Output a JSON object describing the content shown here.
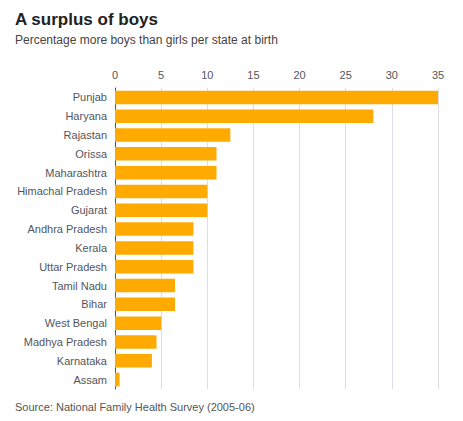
{
  "chart_data": {
    "type": "bar",
    "orientation": "horizontal",
    "title": "A surplus of boys",
    "subtitle": "Percentage more boys than girls per state at birth",
    "annotations": [
      "Source: National Family Health Survey (2005-06)"
    ],
    "categories": [
      "Assam",
      "Karnataka",
      "Madhya Pradesh",
      "West Bengal",
      "Bihar",
      "Tamil Nadu",
      "Uttar Pradesh",
      "Kerala",
      "Andhra Pradesh",
      "Gujarat",
      "Himachal Pradesh",
      "Maharashtra",
      "Orissa",
      "Rajastan",
      "Haryana",
      "Punjab"
    ],
    "values": [
      0.5,
      4.0,
      4.5,
      5.0,
      6.5,
      6.5,
      8.5,
      8.5,
      8.5,
      10.0,
      10.0,
      11.0,
      11.0,
      12.5,
      28.0,
      35.0
    ],
    "color": "#FFAA00",
    "xlim": [
      0,
      35
    ],
    "xticks": [
      0,
      5,
      10,
      15,
      20,
      25,
      30,
      35
    ],
    "grid": true
  }
}
